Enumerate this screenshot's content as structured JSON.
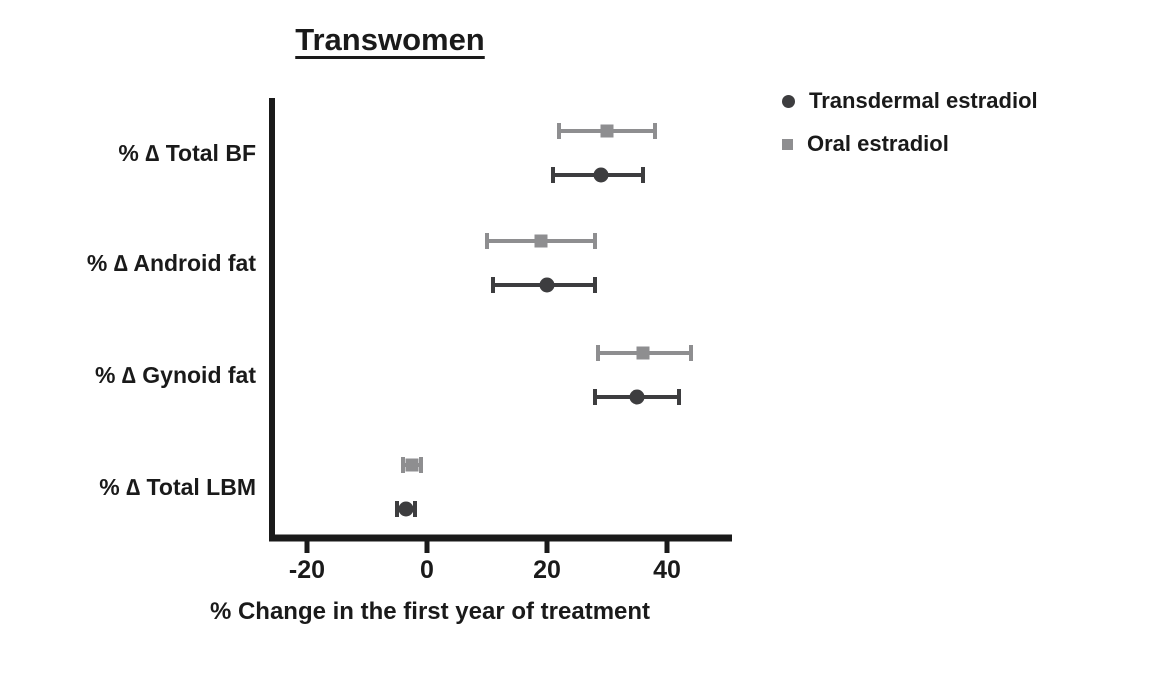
{
  "chart_data": {
    "type": "scatter",
    "subtype": "horizontal-dot-plot-with-error-bars",
    "title": "Transwomen",
    "xlabel": "% Change in the first year of treatment",
    "xlim": [
      -26,
      50
    ],
    "xticks": [
      -20,
      0,
      20,
      40
    ],
    "grid": false,
    "legend_position": "top-right",
    "categories": [
      "% ∆ Total BF",
      "% ∆ Android fat",
      "% ∆ Gynoid fat",
      "% ∆ Total LBM"
    ],
    "series": [
      {
        "name": "Transdermal estradiol",
        "marker": "circle",
        "color": "#3d3d3f",
        "values": [
          29,
          20,
          35,
          -3.5
        ],
        "ci_lower": [
          21,
          11,
          28,
          -5
        ],
        "ci_upper": [
          36,
          28,
          42,
          -2
        ]
      },
      {
        "name": "Oral estradiol",
        "marker": "square",
        "color": "#8e8e90",
        "values": [
          30,
          19,
          36,
          -2.5
        ],
        "ci_lower": [
          22,
          10,
          28.5,
          -4
        ],
        "ci_upper": [
          38,
          28,
          44,
          -1
        ]
      }
    ]
  }
}
